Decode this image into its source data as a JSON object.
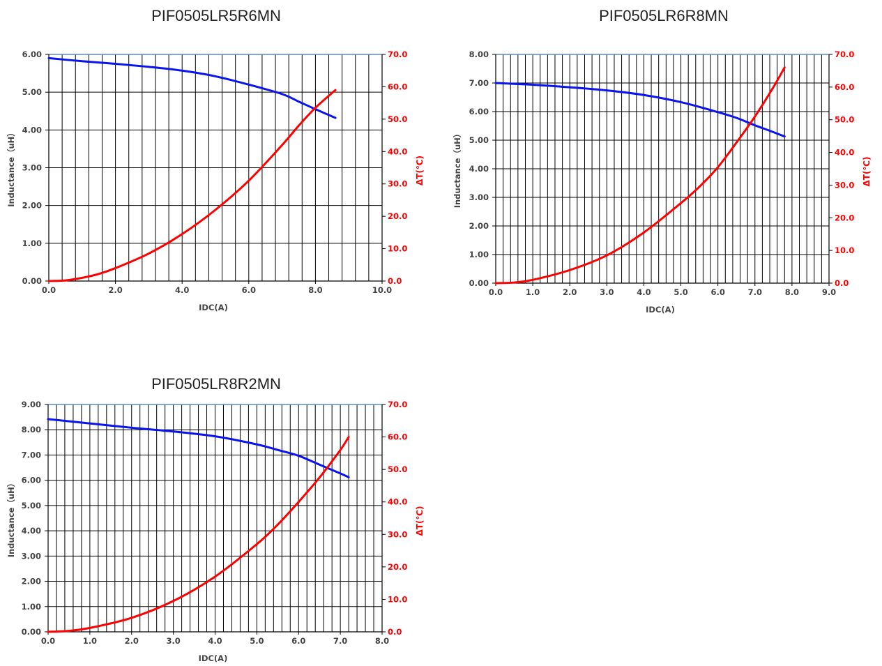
{
  "colors": {
    "inductance_line": "#0a14f0",
    "temperature_line": "#ff0000",
    "grid": "#000000",
    "top_border": "#5b8bc4",
    "right_axis_text": "#ff0000"
  },
  "chart_data": [
    {
      "type": "line",
      "title": "PIF0505LR5R6MN",
      "xlabel": "IDC(A)",
      "ylabel": "Inductance（uH）",
      "ylabel_right": "ΔT(℃)",
      "xlim": [
        0,
        10
      ],
      "ylim": [
        0,
        6
      ],
      "ylim_right": [
        0,
        70
      ],
      "x_ticks": [
        "0.0",
        "2.0",
        "4.0",
        "6.0",
        "8.0",
        "10.0"
      ],
      "y_ticks": [
        "0.00",
        "1.00",
        "2.00",
        "3.00",
        "4.00",
        "5.00",
        "6.00"
      ],
      "y_ticks_right": [
        "0.0",
        "10.0",
        "20.0",
        "30.0",
        "40.0",
        "50.0",
        "60.0",
        "70.0"
      ],
      "x_minor_step": 0.4,
      "grid": true,
      "series": [
        {
          "axis": "left",
          "x": [
            0,
            1,
            2,
            3,
            4,
            5,
            6,
            7,
            7.5,
            8,
            8.6
          ],
          "values": [
            5.9,
            5.82,
            5.75,
            5.67,
            5.57,
            5.42,
            5.2,
            4.95,
            4.75,
            4.55,
            4.32
          ]
        },
        {
          "axis": "right",
          "x": [
            0,
            0.5,
            1,
            1.5,
            2,
            3,
            4,
            5,
            6,
            7,
            7.5,
            8,
            8.6
          ],
          "values": [
            0,
            0.2,
            1,
            2.2,
            4,
            8.5,
            14.5,
            22,
            31,
            42,
            48,
            53.5,
            59
          ]
        }
      ]
    },
    {
      "type": "line",
      "title": "PIF0505LR6R8MN",
      "xlabel": "IDC(A)",
      "ylabel": "Inductance（uH）",
      "ylabel_right": "ΔT(℃)",
      "xlim": [
        0,
        9
      ],
      "ylim": [
        0,
        8
      ],
      "ylim_right": [
        0,
        70
      ],
      "x_ticks": [
        "0.0",
        "1.0",
        "2.0",
        "3.0",
        "4.0",
        "5.0",
        "6.0",
        "7.0",
        "8.0",
        "9.0"
      ],
      "y_ticks": [
        "0.00",
        "1.00",
        "2.00",
        "3.00",
        "4.00",
        "5.00",
        "6.00",
        "7.00",
        "8.00"
      ],
      "y_ticks_right": [
        "0.0",
        "10.0",
        "20.0",
        "30.0",
        "40.0",
        "50.0",
        "60.0",
        "70.0"
      ],
      "x_minor_step": 0.2,
      "grid": true,
      "series": [
        {
          "axis": "left",
          "x": [
            0,
            1,
            2,
            3,
            4,
            5,
            6,
            6.5,
            7,
            7.4,
            7.8
          ],
          "values": [
            7.0,
            6.94,
            6.85,
            6.74,
            6.58,
            6.33,
            5.98,
            5.78,
            5.52,
            5.33,
            5.13
          ]
        },
        {
          "axis": "right",
          "x": [
            0,
            0.5,
            1,
            2,
            3,
            4,
            5,
            5.5,
            6,
            6.5,
            7,
            7.5,
            7.8
          ],
          "values": [
            0,
            0.2,
            1,
            4,
            8.5,
            15.5,
            24.5,
            29.5,
            35.5,
            43,
            51,
            60,
            66
          ]
        }
      ]
    },
    {
      "type": "line",
      "title": "PIF0505LR8R2MN",
      "xlabel": "IDC(A)",
      "ylabel": "Inductance（uH）",
      "ylabel_right": "ΔT(℃)",
      "xlim": [
        0,
        8
      ],
      "ylim": [
        0,
        9
      ],
      "ylim_right": [
        0,
        70
      ],
      "x_ticks": [
        "0.0",
        "1.0",
        "2.0",
        "3.0",
        "4.0",
        "5.0",
        "6.0",
        "7.0",
        "8.0"
      ],
      "y_ticks": [
        "0.00",
        "1.00",
        "2.00",
        "3.00",
        "4.00",
        "5.00",
        "6.00",
        "7.00",
        "8.00",
        "9.00"
      ],
      "y_ticks_right": [
        "0.0",
        "10.0",
        "20.0",
        "30.0",
        "40.0",
        "50.0",
        "60.0",
        "70.0"
      ],
      "x_minor_step": 0.2,
      "grid": true,
      "series": [
        {
          "axis": "left",
          "x": [
            0,
            1,
            2,
            3,
            4,
            5,
            5.5,
            6,
            6.5,
            7,
            7.2
          ],
          "values": [
            8.42,
            8.25,
            8.08,
            7.93,
            7.74,
            7.42,
            7.2,
            6.97,
            6.62,
            6.27,
            6.12
          ]
        },
        {
          "axis": "right",
          "x": [
            0,
            0.5,
            1,
            2,
            3,
            4,
            5,
            5.5,
            6,
            6.5,
            7,
            7.2
          ],
          "values": [
            0,
            0.3,
            1.2,
            4.3,
            9.5,
            17,
            27,
            33,
            40,
            47.5,
            56,
            60
          ]
        }
      ]
    }
  ]
}
